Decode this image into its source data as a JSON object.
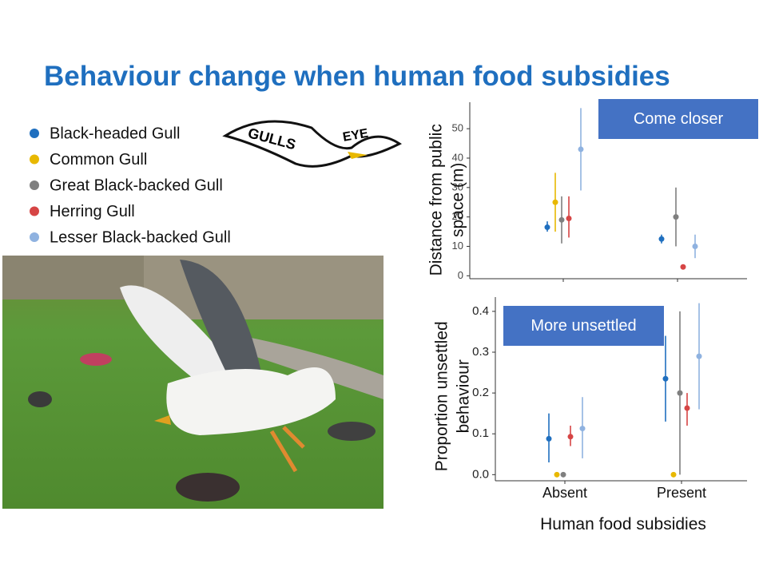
{
  "title": "Behaviour change when human food subsidies",
  "logo": {
    "left": "GULLS",
    "right": "EYE"
  },
  "legend": [
    {
      "name": "Black-headed Gull",
      "color": "#1f6fbf"
    },
    {
      "name": "Common Gull",
      "color": "#e8b800"
    },
    {
      "name": "Great Black-backed Gull",
      "color": "#7f7f7f"
    },
    {
      "name": "Herring Gull",
      "color": "#d64545"
    },
    {
      "name": "Lesser Black-backed Gull",
      "color": "#8fb2e0"
    }
  ],
  "chart_data": [
    {
      "type": "errorbar",
      "y_label": "Distance from public space (m)",
      "annotation": "Come closer",
      "categories": [
        null,
        null
      ],
      "ylim": [
        -1,
        59
      ],
      "yticks": [
        0,
        10,
        20,
        30,
        40,
        50
      ],
      "series": [
        {
          "values": [
            16.5,
            12.5
          ],
          "low": [
            15,
            11
          ],
          "high": [
            18.5,
            14
          ]
        },
        {
          "values": [
            25,
            null
          ],
          "low": [
            15,
            null
          ],
          "high": [
            35,
            null
          ]
        },
        {
          "values": [
            19,
            20
          ],
          "low": [
            11,
            10
          ],
          "high": [
            27,
            30
          ]
        },
        {
          "values": [
            19.5,
            3
          ],
          "low": [
            13,
            2.5
          ],
          "high": [
            27,
            3.5
          ]
        },
        {
          "values": [
            43,
            10
          ],
          "low": [
            29,
            6
          ],
          "high": [
            57,
            14
          ]
        }
      ]
    },
    {
      "type": "errorbar",
      "y_label": "Proportion unsettled behaviour",
      "x_label": "Human food subsidies",
      "annotation": "More unsettled",
      "categories": [
        "Absent",
        "Present"
      ],
      "ylim": [
        -0.015,
        0.435
      ],
      "yticks": [
        {
          "value": 0,
          "label": "0.0"
        },
        0.1,
        0.2,
        0.3,
        0.4
      ],
      "series": [
        {
          "values": [
            0.088,
            0.235
          ],
          "low": [
            0.03,
            0.13
          ],
          "high": [
            0.15,
            0.34
          ]
        },
        {
          "values": [
            0,
            0
          ],
          "low": [
            0,
            0
          ],
          "high": [
            0,
            0
          ]
        },
        {
          "values": [
            0,
            0.2
          ],
          "low": [
            0,
            0
          ],
          "high": [
            0,
            0.4
          ]
        },
        {
          "values": [
            0.093,
            0.163
          ],
          "low": [
            0.07,
            0.12
          ],
          "high": [
            0.12,
            0.2
          ]
        },
        {
          "values": [
            0.113,
            0.29
          ],
          "low": [
            0.04,
            0.16
          ],
          "high": [
            0.19,
            0.42
          ]
        }
      ]
    }
  ]
}
